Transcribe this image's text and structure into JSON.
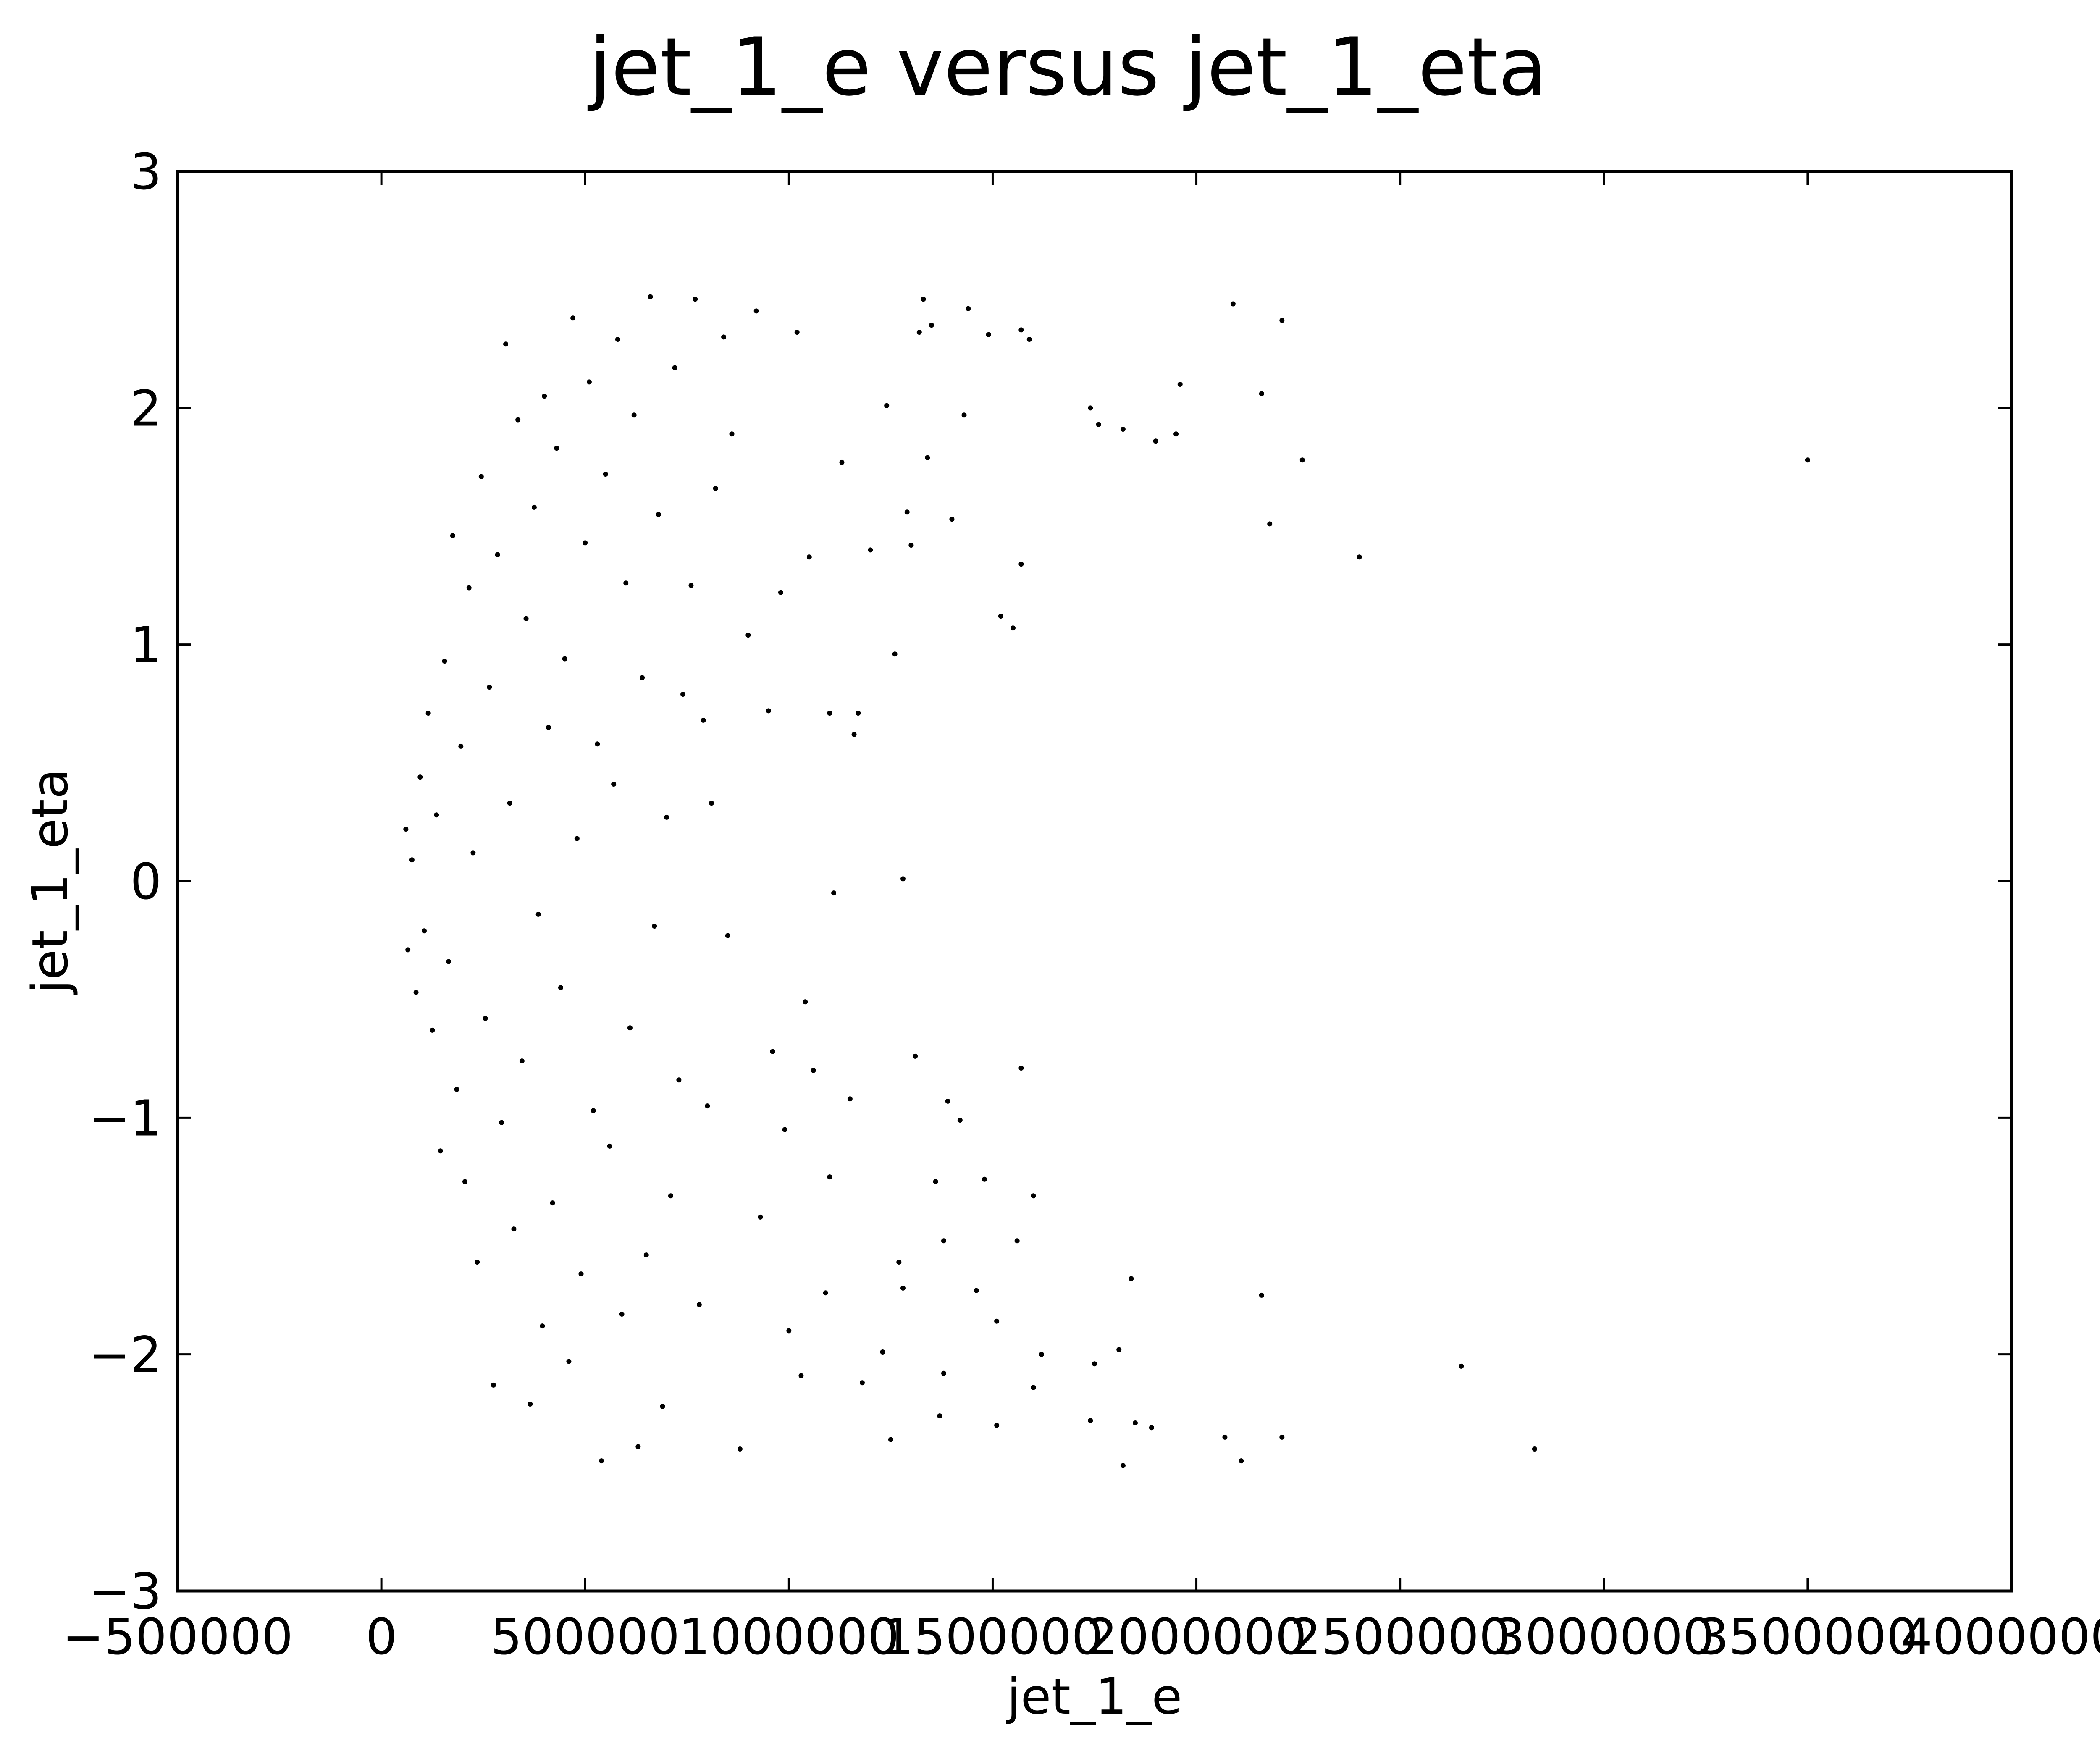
{
  "chart_data": {
    "type": "scatter",
    "title": "jet_1_e versus jet_1_eta",
    "xlabel": "jet_1_e",
    "ylabel": "jet_1_eta",
    "xlim": [
      -500000,
      4000000
    ],
    "ylim": [
      -3,
      3
    ],
    "xticks": [
      -500000,
      0,
      500000,
      1000000,
      1500000,
      2000000,
      2500000,
      3000000,
      3500000,
      4000000
    ],
    "xtick_labels": [
      "−500000",
      "0",
      "500000",
      "1000000",
      "1500000",
      "2000000",
      "2500000",
      "3000000",
      "3500000",
      "4000000"
    ],
    "yticks": [
      -3,
      -2,
      -1,
      0,
      1,
      2,
      3
    ],
    "ytick_labels": [
      "−3",
      "−2",
      "−1",
      "0",
      "1",
      "2",
      "3"
    ],
    "grid": false,
    "legend": "none",
    "marker_color": "#000000",
    "series": [
      {
        "points": [
          [
            3500000,
            1.78
          ],
          [
            2830000,
            -2.4
          ],
          [
            2650000,
            -2.05
          ],
          [
            2400000,
            1.37
          ],
          [
            2260000,
            1.78
          ],
          [
            2210000,
            2.37
          ],
          [
            2210000,
            -2.35
          ],
          [
            2180000,
            1.51
          ],
          [
            2160000,
            2.06
          ],
          [
            2160000,
            -1.75
          ],
          [
            2110000,
            -2.45
          ],
          [
            2090000,
            2.44
          ],
          [
            2070000,
            -2.35
          ],
          [
            1960000,
            2.1
          ],
          [
            1950000,
            1.89
          ],
          [
            1900000,
            1.86
          ],
          [
            1890000,
            -2.31
          ],
          [
            1850000,
            -2.29
          ],
          [
            1840000,
            -1.68
          ],
          [
            1820000,
            -2.47
          ],
          [
            1820000,
            1.91
          ],
          [
            1810000,
            -1.98
          ],
          [
            1760000,
            1.93
          ],
          [
            1750000,
            -2.04
          ],
          [
            1740000,
            2.0
          ],
          [
            1740000,
            -2.28
          ],
          [
            1620000,
            -2.0
          ],
          [
            1600000,
            -1.33
          ],
          [
            1600000,
            -2.14
          ],
          [
            1590000,
            2.29
          ],
          [
            1570000,
            2.33
          ],
          [
            1570000,
            -0.79
          ],
          [
            1570000,
            1.34
          ],
          [
            1560000,
            -1.52
          ],
          [
            1550000,
            1.07
          ],
          [
            1520000,
            1.12
          ],
          [
            1510000,
            -1.86
          ],
          [
            1510000,
            -2.3
          ],
          [
            1490000,
            2.31
          ],
          [
            1480000,
            -1.26
          ],
          [
            1460000,
            -1.73
          ],
          [
            1440000,
            2.42
          ],
          [
            1430000,
            1.97
          ],
          [
            1420000,
            -1.01
          ],
          [
            1400000,
            1.53
          ],
          [
            1390000,
            -0.93
          ],
          [
            1380000,
            -1.52
          ],
          [
            1380000,
            -2.08
          ],
          [
            1370000,
            -2.26
          ],
          [
            1360000,
            -1.27
          ],
          [
            1350000,
            2.35
          ],
          [
            1340000,
            1.79
          ],
          [
            1330000,
            2.46
          ],
          [
            1320000,
            2.32
          ],
          [
            1310000,
            -0.74
          ],
          [
            1300000,
            1.42
          ],
          [
            1290000,
            1.56
          ],
          [
            1280000,
            -1.72
          ],
          [
            1280000,
            0.01
          ],
          [
            1270000,
            -1.61
          ],
          [
            1260000,
            0.96
          ],
          [
            1250000,
            -2.36
          ],
          [
            1240000,
            2.01
          ],
          [
            1230000,
            -1.99
          ],
          [
            1200000,
            1.4
          ],
          [
            1180000,
            -2.12
          ],
          [
            1170000,
            0.71
          ],
          [
            1160000,
            0.62
          ],
          [
            1150000,
            -0.92
          ],
          [
            1130000,
            1.77
          ],
          [
            1110000,
            -0.05
          ],
          [
            1100000,
            0.71
          ],
          [
            1100000,
            -1.25
          ],
          [
            1090000,
            -1.74
          ],
          [
            1060000,
            -0.8
          ],
          [
            1050000,
            1.37
          ],
          [
            1040000,
            -0.51
          ],
          [
            1030000,
            -2.09
          ],
          [
            1020000,
            2.32
          ],
          [
            1000000,
            -1.9
          ],
          [
            990000,
            -1.05
          ],
          [
            980000,
            1.22
          ],
          [
            960000,
            -0.72
          ],
          [
            950000,
            0.72
          ],
          [
            930000,
            -1.42
          ],
          [
            920000,
            2.41
          ],
          [
            900000,
            1.04
          ],
          [
            880000,
            -2.4
          ],
          [
            860000,
            1.89
          ],
          [
            850000,
            -0.23
          ],
          [
            840000,
            2.3
          ],
          [
            820000,
            1.66
          ],
          [
            810000,
            0.33
          ],
          [
            800000,
            -0.95
          ],
          [
            790000,
            0.68
          ],
          [
            780000,
            -1.79
          ],
          [
            770000,
            2.46
          ],
          [
            760000,
            1.25
          ],
          [
            740000,
            0.79
          ],
          [
            730000,
            -0.84
          ],
          [
            720000,
            2.17
          ],
          [
            710000,
            -1.33
          ],
          [
            700000,
            0.27
          ],
          [
            690000,
            -2.22
          ],
          [
            680000,
            1.55
          ],
          [
            670000,
            -0.19
          ],
          [
            660000,
            2.47
          ],
          [
            650000,
            -1.58
          ],
          [
            640000,
            0.86
          ],
          [
            630000,
            -2.39
          ],
          [
            620000,
            1.97
          ],
          [
            610000,
            -0.62
          ],
          [
            600000,
            1.26
          ],
          [
            590000,
            -1.83
          ],
          [
            580000,
            2.29
          ],
          [
            570000,
            0.41
          ],
          [
            560000,
            -1.12
          ],
          [
            550000,
            1.72
          ],
          [
            540000,
            -2.45
          ],
          [
            530000,
            0.58
          ],
          [
            520000,
            -0.97
          ],
          [
            510000,
            2.11
          ],
          [
            500000,
            1.43
          ],
          [
            490000,
            -1.66
          ],
          [
            480000,
            0.18
          ],
          [
            470000,
            2.38
          ],
          [
            460000,
            -2.03
          ],
          [
            450000,
            0.94
          ],
          [
            440000,
            -0.45
          ],
          [
            430000,
            1.83
          ],
          [
            420000,
            -1.36
          ],
          [
            410000,
            0.65
          ],
          [
            400000,
            2.05
          ],
          [
            395000,
            -1.88
          ],
          [
            385000,
            -0.14
          ],
          [
            375000,
            1.58
          ],
          [
            365000,
            -2.21
          ],
          [
            355000,
            1.11
          ],
          [
            345000,
            -0.76
          ],
          [
            335000,
            1.95
          ],
          [
            325000,
            -1.47
          ],
          [
            315000,
            0.33
          ],
          [
            305000,
            2.27
          ],
          [
            295000,
            -1.02
          ],
          [
            285000,
            1.38
          ],
          [
            275000,
            -2.13
          ],
          [
            265000,
            0.82
          ],
          [
            255000,
            -0.58
          ],
          [
            245000,
            1.71
          ],
          [
            235000,
            -1.61
          ],
          [
            225000,
            0.12
          ],
          [
            215000,
            1.24
          ],
          [
            205000,
            -1.27
          ],
          [
            195000,
            0.57
          ],
          [
            185000,
            -0.88
          ],
          [
            175000,
            1.46
          ],
          [
            165000,
            -0.34
          ],
          [
            155000,
            0.93
          ],
          [
            145000,
            -1.14
          ],
          [
            135000,
            0.28
          ],
          [
            125000,
            -0.63
          ],
          [
            115000,
            0.71
          ],
          [
            105000,
            -0.21
          ],
          [
            95000,
            0.44
          ],
          [
            85000,
            -0.47
          ],
          [
            75000,
            0.09
          ],
          [
            65000,
            -0.29
          ],
          [
            60000,
            0.22
          ]
        ]
      }
    ]
  }
}
